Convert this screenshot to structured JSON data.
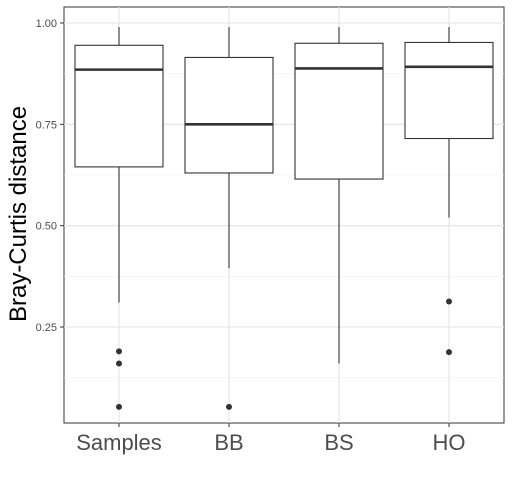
{
  "chart_data": {
    "type": "boxplot",
    "title": "",
    "xlabel": "",
    "ylabel": "Bray-Curtis distance",
    "categories": [
      "Samples",
      "BB",
      "BS",
      "HO"
    ],
    "y_ticks": [
      0.25,
      0.5,
      0.75,
      1.0
    ],
    "y_tick_labels": [
      "0.25",
      "0.50",
      "0.75",
      "1.00"
    ],
    "ylim": [
      0.0,
      1.02
    ],
    "grid": true,
    "boxes": [
      {
        "category": "Samples",
        "whisker_low": 0.31,
        "q1": 0.645,
        "median": 0.885,
        "q3": 0.945,
        "whisker_high": 0.99,
        "outliers": [
          0.19,
          0.16,
          0.053
        ]
      },
      {
        "category": "BB",
        "whisker_low": 0.395,
        "q1": 0.63,
        "median": 0.75,
        "q3": 0.915,
        "whisker_high": 0.99,
        "outliers": [
          0.053
        ]
      },
      {
        "category": "BS",
        "whisker_low": 0.16,
        "q1": 0.615,
        "median": 0.888,
        "q3": 0.95,
        "whisker_high": 0.99,
        "outliers": []
      },
      {
        "category": "HO",
        "whisker_low": 0.52,
        "q1": 0.715,
        "median": 0.892,
        "q3": 0.952,
        "whisker_high": 0.99,
        "outliers": [
          0.313,
          0.188
        ]
      }
    ]
  }
}
